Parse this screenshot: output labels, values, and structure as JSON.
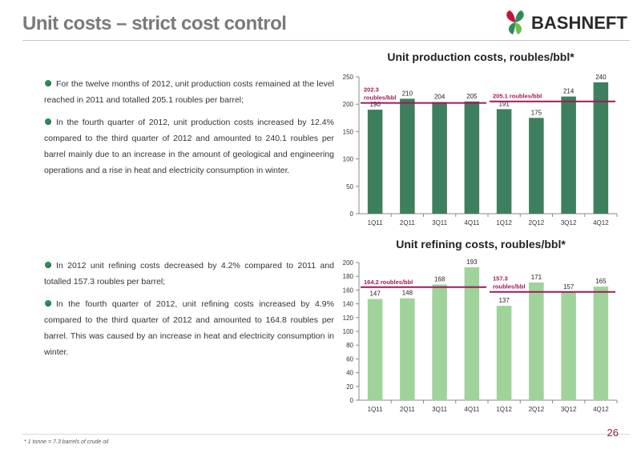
{
  "title": "Unit costs – strict cost control",
  "logo": {
    "text": "BASHNEFT"
  },
  "left_text": {
    "production_bullets": [
      "For the twelve months of 2012, unit production costs remained at the level reached in 2011 and totalled 205.1 roubles per barrel;",
      "In the fourth quarter of 2012, unit production costs increased by 12.4% compared to the third quarter of 2012 and amounted to 240.1 roubles per barrel mainly due to an increase in the amount of geological and engineering operations and a rise in heat and electricity consumption in winter."
    ],
    "refining_bullets": [
      "In 2012 unit refining costs decreased by 4.2% compared to 2011 and totalled 157.3 roubles per barrel;",
      "In the fourth quarter of 2012, unit refining costs increased by 4.9% compared to the third quarter of 2012 and amounted to 164.8 roubles per barrel. This was caused by an increase in heat and electricity consumption in winter."
    ]
  },
  "chart_data": [
    {
      "type": "bar",
      "title": "Unit production costs, roubles/bbl*",
      "categories": [
        "1Q11",
        "2Q11",
        "3Q11",
        "4Q11",
        "1Q12",
        "2Q12",
        "3Q12",
        "4Q12"
      ],
      "values": [
        190,
        210,
        204,
        205,
        191,
        175,
        214,
        240
      ],
      "ylim": [
        0,
        250
      ],
      "yticks": [
        0,
        50,
        100,
        150,
        200,
        250
      ],
      "bar_color": "#3e7f5e",
      "grid": false,
      "annotations": [
        {
          "text_lines": [
            "202.3",
            "roubles/bbl"
          ],
          "value": 202.3,
          "from": 0,
          "to": 3
        },
        {
          "text_lines": [
            "205.1 roubles/bbl"
          ],
          "value": 205.1,
          "from": 4,
          "to": 7
        }
      ]
    },
    {
      "type": "bar",
      "title": "Unit refining costs, roubles/bbl*",
      "categories": [
        "1Q11",
        "2Q11",
        "3Q11",
        "4Q11",
        "1Q12",
        "2Q12",
        "3Q12",
        "4Q12"
      ],
      "values": [
        147,
        148,
        168,
        193,
        137,
        171,
        157,
        165
      ],
      "ylim": [
        0,
        200
      ],
      "yticks": [
        0,
        20,
        40,
        60,
        80,
        100,
        120,
        140,
        160,
        180,
        200
      ],
      "bar_color": "#9fd39a",
      "grid": false,
      "annotations": [
        {
          "text_lines": [
            "164.2 roubles/bbl"
          ],
          "value": 164.2,
          "from": 0,
          "to": 3
        },
        {
          "text_lines": [
            "157.3",
            "roubles/bbl"
          ],
          "value": 157.3,
          "from": 4,
          "to": 7
        }
      ]
    }
  ],
  "colors": {
    "accent_line": "#a0195a",
    "title_gray": "#7a7a7a",
    "logo_green": "#2e8b57",
    "logo_red": "#c0143c"
  },
  "footnote": "* 1 tonne = 7.3 barrels of crude oil",
  "page_number": "26"
}
